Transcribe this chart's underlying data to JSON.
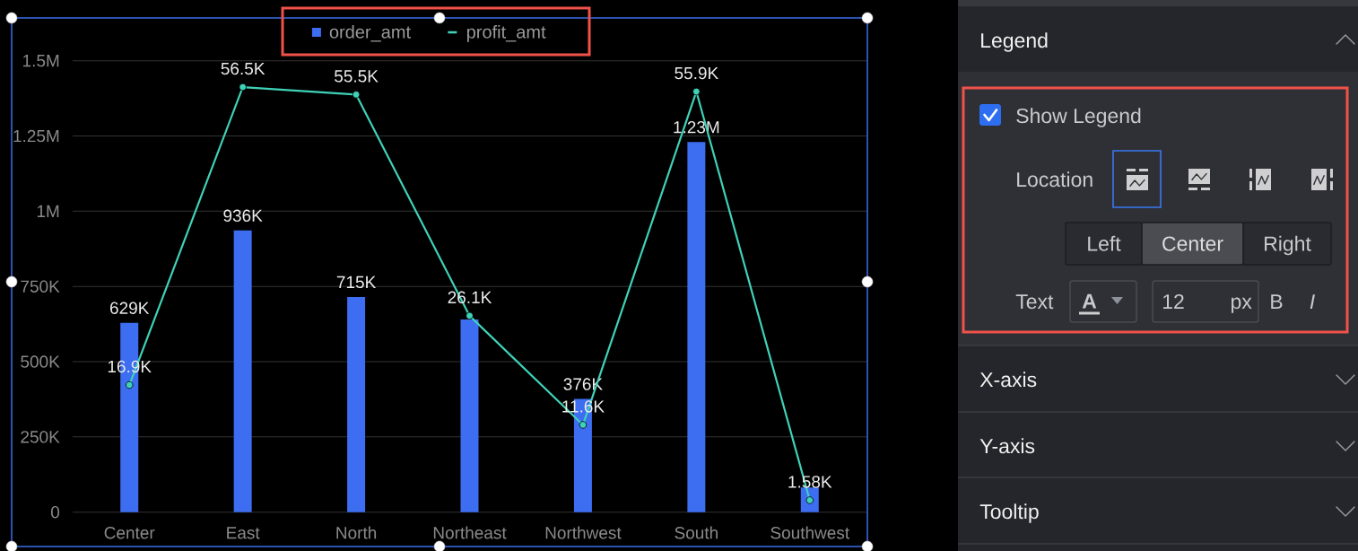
{
  "chart_data": [
    {
      "type": "bar",
      "categories": [
        "Center",
        "East",
        "North",
        "Northeast",
        "Northwest",
        "South",
        "Southwest"
      ],
      "series": [
        {
          "name": "order_amt",
          "color": "#3d6df0",
          "values": [
            629000,
            936000,
            715000,
            640000,
            376000,
            1230000,
            82000
          ],
          "value_labels": [
            "629K",
            "936K",
            "715K",
            null,
            "376K",
            "1.23M",
            null
          ]
        },
        {
          "name": "profit_amt",
          "type": "line",
          "axis": "y2",
          "color": "#3fd2b8",
          "values": [
            16900,
            56500,
            55500,
            26100,
            11600,
            55900,
            1580
          ],
          "value_labels": [
            "16.9K",
            "56.5K",
            "55.5K",
            "26.1K",
            "11.6K",
            "55.9K",
            "1.58K"
          ]
        }
      ],
      "ylim": [
        0,
        1500000
      ],
      "yticks": [
        0,
        {
          "value": 250000,
          "label": "250K"
        },
        {
          "value": 500000,
          "label": "500K"
        },
        {
          "value": 750000,
          "label": "750K"
        },
        {
          "value": 1000000,
          "label": "1M"
        },
        {
          "value": 1250000,
          "label": "1.25M"
        },
        {
          "value": 1500000,
          "label": "1.5M"
        }
      ],
      "y2lim": [
        0,
        60000
      ],
      "grid": "y",
      "legend": "top",
      "marker": "circle"
    },
    {
      "type": "other",
      "title": "Legend",
      "annotations": [
        "Show Legend",
        "Location",
        "Left",
        "Center",
        "Right",
        "Text",
        "A",
        "12",
        "px",
        "B",
        "I",
        "X-axis",
        "Y-axis",
        "Tooltip"
      ]
    }
  ]
}
